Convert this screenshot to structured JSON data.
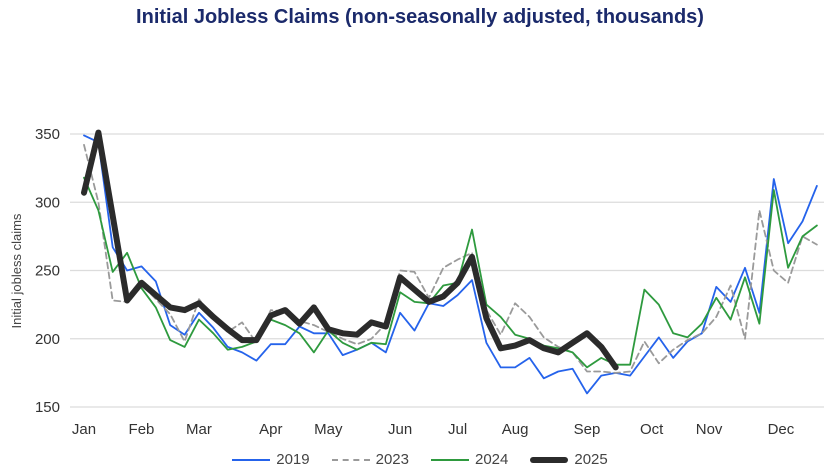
{
  "chart_data": {
    "type": "line",
    "title": "Initial Jobless Claims (non-seasonally adjusted, thousands)",
    "xlabel": "",
    "ylabel": "Initial jobless claims",
    "ylim": [
      150,
      350
    ],
    "yticks": [
      150,
      200,
      250,
      300,
      350
    ],
    "xlim_weeks": [
      1,
      52
    ],
    "grid": "horizontal",
    "legend": "bottom",
    "month_ticks": [
      {
        "label": "Jan",
        "week": 1
      },
      {
        "label": "Feb",
        "week": 5
      },
      {
        "label": "Mar",
        "week": 9
      },
      {
        "label": "Apr",
        "week": 14
      },
      {
        "label": "May",
        "week": 18
      },
      {
        "label": "Jun",
        "week": 23
      },
      {
        "label": "Jul",
        "week": 27
      },
      {
        "label": "Aug",
        "week": 31
      },
      {
        "label": "Sep",
        "week": 36
      },
      {
        "label": "Oct",
        "week": 40.5
      },
      {
        "label": "Nov",
        "week": 44.5
      },
      {
        "label": "Dec",
        "week": 49.5
      }
    ],
    "series": [
      {
        "name": "2019",
        "color": "#2563eb",
        "style": "solid",
        "values": [
          349,
          344,
          267,
          250,
          253,
          242,
          210,
          203,
          219,
          208,
          194,
          190,
          184,
          196,
          196,
          209,
          204,
          204,
          188,
          192,
          197,
          190,
          219,
          206,
          226,
          224,
          232,
          243,
          197,
          179,
          179,
          186,
          171,
          176,
          178,
          160,
          173,
          175,
          173,
          187,
          201,
          186,
          198,
          204,
          238,
          227,
          252,
          219,
          317,
          270,
          286,
          312
        ]
      },
      {
        "name": "2023",
        "color": "#9a9a9a",
        "style": "dashed",
        "values": [
          342,
          300,
          228,
          227,
          240,
          229,
          218,
          198,
          229,
          215,
          205,
          212,
          197,
          221,
          220,
          213,
          210,
          205,
          200,
          196,
          200,
          211,
          250,
          249,
          230,
          252,
          258,
          263,
          221,
          203,
          226,
          216,
          201,
          194,
          190,
          176,
          176,
          175,
          176,
          198,
          182,
          192,
          199,
          204,
          216,
          239,
          200,
          294,
          250,
          241,
          275,
          269
        ]
      },
      {
        "name": "2024",
        "color": "#2e9a3e",
        "style": "solid",
        "values": [
          318,
          294,
          249,
          263,
          237,
          223,
          199,
          194,
          214,
          204,
          192,
          194,
          198,
          214,
          210,
          204,
          190,
          206,
          197,
          192,
          197,
          196,
          234,
          227,
          226,
          239,
          241,
          280,
          225,
          216,
          203,
          200,
          195,
          193,
          190,
          179,
          186,
          181,
          181,
          236,
          225,
          204,
          201,
          211,
          230,
          214,
          245,
          211,
          309,
          252,
          275,
          283
        ]
      },
      {
        "name": "2025",
        "color": "#2b2b2b",
        "style": "bold",
        "values": [
          307,
          351,
          290,
          228,
          241,
          232,
          223,
          221,
          226,
          216,
          207,
          199,
          199,
          217,
          221,
          211,
          223,
          207,
          204,
          203,
          212,
          209,
          245,
          236,
          227,
          231,
          241,
          260,
          215,
          193,
          195,
          199,
          193,
          190,
          197,
          204,
          194,
          179
        ]
      }
    ]
  }
}
